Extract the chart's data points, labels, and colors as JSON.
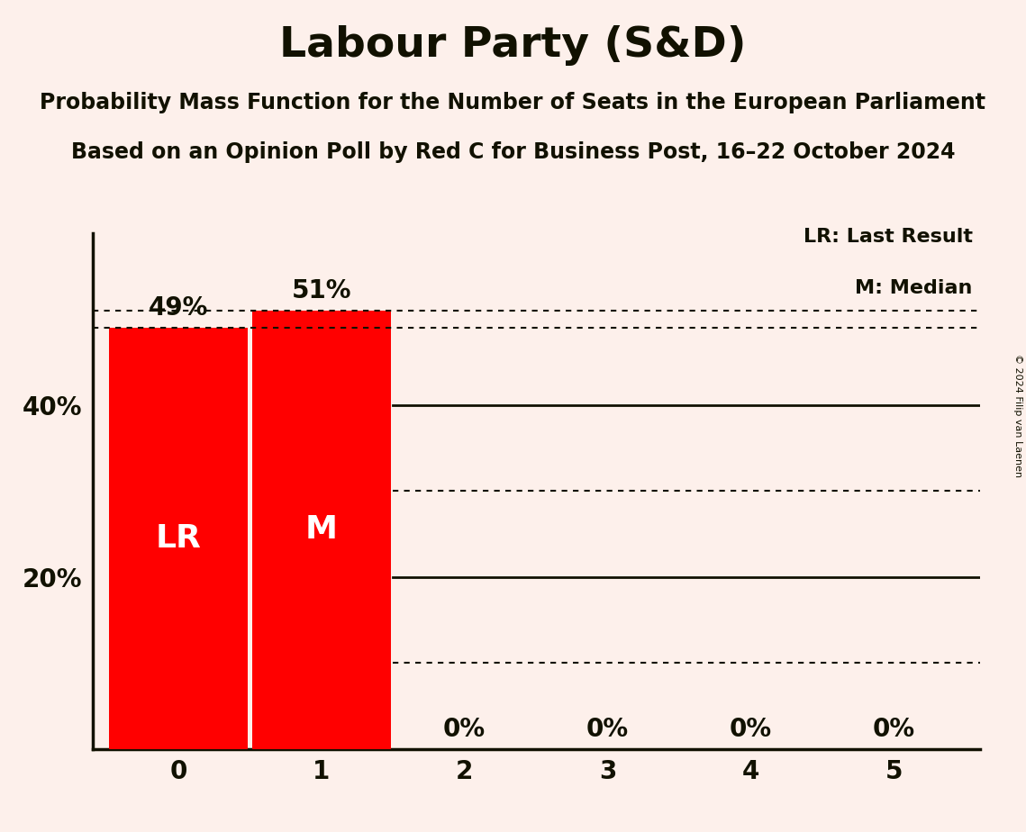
{
  "title": "Labour Party (S&D)",
  "subtitle1": "Probability Mass Function for the Number of Seats in the European Parliament",
  "subtitle2": "Based on an Opinion Poll by Red C for Business Post, 16–22 October 2024",
  "copyright": "© 2024 Filip van Laenen",
  "categories": [
    0,
    1,
    2,
    3,
    4,
    5
  ],
  "values": [
    0.49,
    0.51,
    0.0,
    0.0,
    0.0,
    0.0
  ],
  "bar_color": "#FF0000",
  "background_color": "#FDF0EB",
  "text_color": "#111100",
  "bar_labels": [
    "49%",
    "51%",
    "0%",
    "0%",
    "0%",
    "0%"
  ],
  "bar_annotations": [
    "LR",
    "M",
    "",
    "",
    "",
    ""
  ],
  "lr_value": 0.49,
  "median_value": 0.51,
  "ylim": [
    0,
    0.6
  ],
  "solid_line_values": [
    0.4,
    0.2
  ],
  "dotted_line_values": [
    0.3,
    0.1
  ],
  "legend_lr_text": "LR: Last Result",
  "legend_m_text": "M: Median",
  "bar_label_fontsize": 20,
  "annotation_fontsize": 26,
  "tick_fontsize": 20,
  "title_fontsize": 34,
  "subtitle_fontsize": 17,
  "legend_fontsize": 16
}
